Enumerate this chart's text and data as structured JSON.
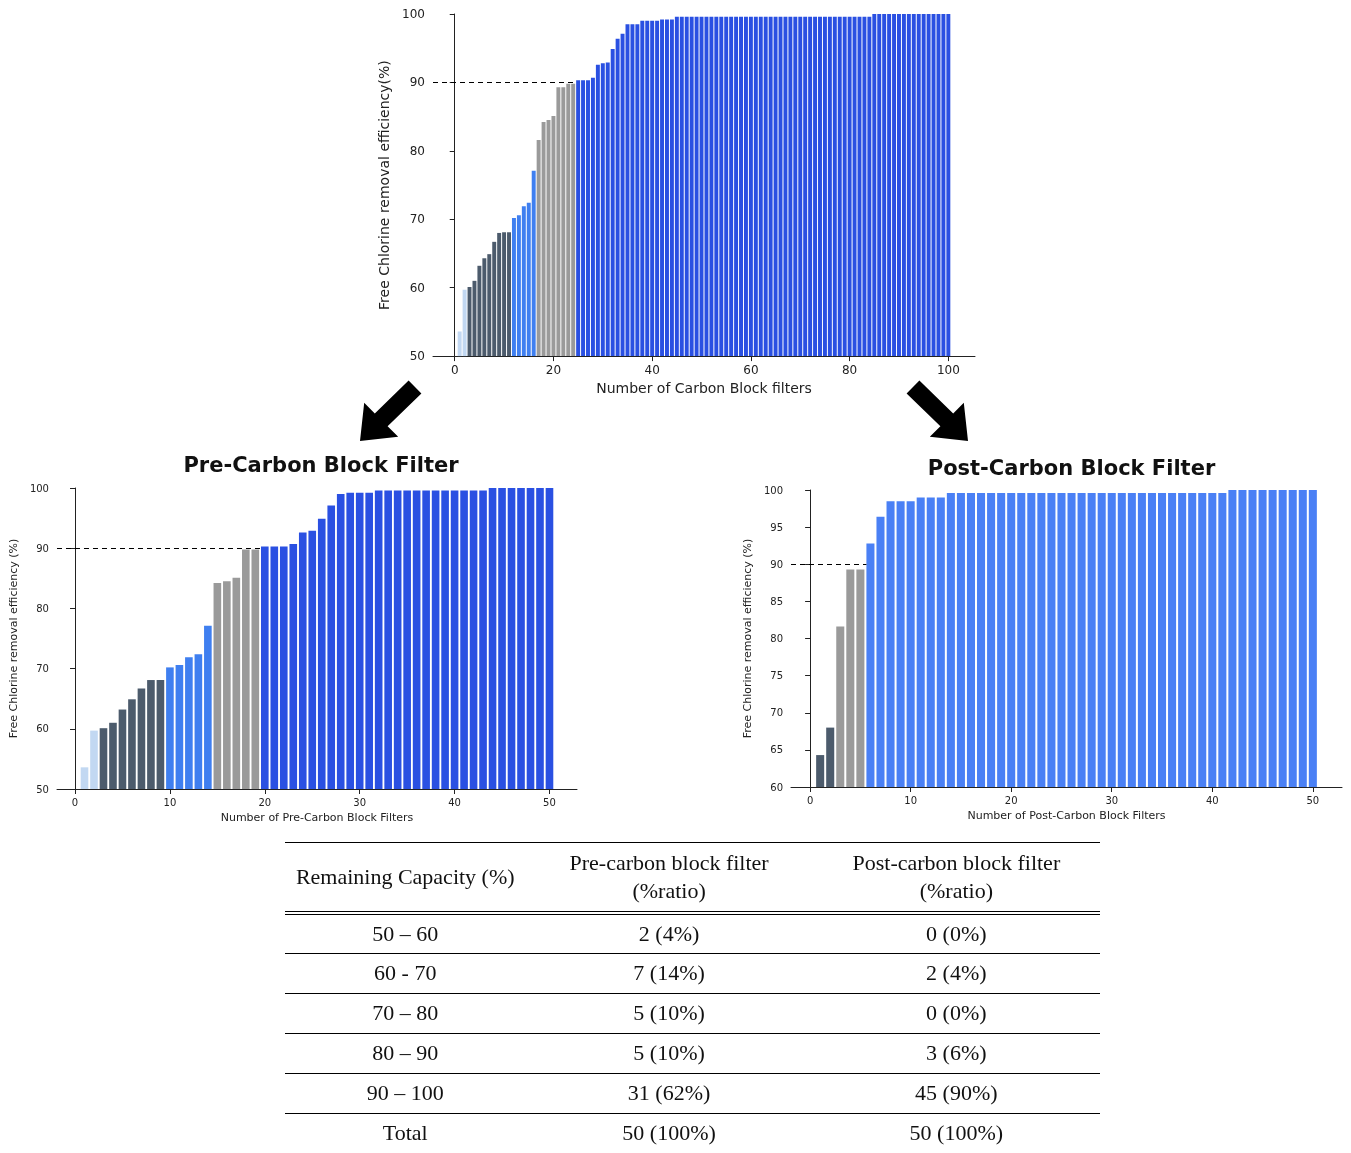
{
  "chart_data": [
    {
      "type": "bar",
      "xlabel": "Number of Carbon Block filters",
      "ylabel": "Free Chlorine removal efficiency(%)",
      "x": [
        1,
        2,
        3,
        4,
        5,
        6,
        7,
        8,
        9,
        10,
        11,
        12,
        13,
        14,
        15,
        16,
        17,
        18,
        19,
        20,
        21,
        22,
        23,
        24,
        25,
        26,
        27,
        28,
        29,
        30,
        31,
        32,
        33,
        34,
        35,
        36,
        37,
        38,
        39,
        40,
        41,
        42,
        43,
        44,
        45,
        46,
        47,
        48,
        49,
        50,
        51,
        52,
        53,
        54,
        55,
        56,
        57,
        58,
        59,
        60,
        61,
        62,
        63,
        64,
        65,
        66,
        67,
        68,
        69,
        70,
        71,
        72,
        73,
        74,
        75,
        76,
        77,
        78,
        79,
        80,
        81,
        82,
        83,
        84,
        85,
        86,
        87,
        88,
        89,
        90,
        91,
        92,
        93,
        94,
        95,
        96,
        97,
        98,
        99,
        100
      ],
      "values": [
        53.6,
        59.7,
        60.1,
        61.0,
        63.2,
        64.3,
        64.9,
        66.7,
        68.0,
        68.1,
        68.1,
        70.2,
        70.6,
        71.9,
        72.4,
        77.1,
        81.6,
        84.2,
        84.5,
        85.1,
        89.3,
        89.3,
        89.8,
        89.8,
        90.3,
        90.3,
        90.3,
        90.7,
        92.6,
        92.8,
        92.9,
        94.9,
        96.4,
        97.1,
        98.5,
        98.5,
        98.5,
        99.0,
        99.0,
        99.0,
        99.0,
        99.2,
        99.2,
        99.2,
        99.6,
        99.6,
        99.6,
        99.6,
        99.6,
        99.6,
        99.6,
        99.6,
        99.6,
        99.6,
        99.6,
        99.6,
        99.6,
        99.6,
        99.6,
        99.6,
        99.6,
        99.6,
        99.6,
        99.6,
        99.6,
        99.6,
        99.6,
        99.6,
        99.6,
        99.6,
        99.6,
        99.6,
        99.6,
        99.6,
        99.6,
        99.6,
        99.6,
        99.6,
        99.6,
        99.6,
        99.6,
        99.6,
        99.6,
        99.6,
        100,
        100,
        100,
        100,
        100,
        100,
        100,
        100,
        100,
        100,
        100,
        100,
        100,
        100,
        100,
        100
      ],
      "colors": [
        "#c2d8f2",
        "#c2d8f2",
        "#4c5b6c",
        "#4c5b6c",
        "#4c5b6c",
        "#4c5b6c",
        "#4c5b6c",
        "#4c5b6c",
        "#4c5b6c",
        "#4c5b6c",
        "#4c5b6c",
        "#3f7ff0",
        "#3f7ff0",
        "#3f7ff0",
        "#3f7ff0",
        "#3f7ff0",
        "#9a9a9a",
        "#9a9a9a",
        "#9a9a9a",
        "#9a9a9a",
        "#9a9a9a",
        "#9a9a9a",
        "#9a9a9a",
        "#9a9a9a",
        "#2a50e2",
        "#2a50e2",
        "#2a50e2",
        "#2a50e2",
        "#2a50e2",
        "#2a50e2",
        "#2a50e2",
        "#2a50e2",
        "#2a50e2",
        "#2a50e2",
        "#2a50e2",
        "#2a50e2",
        "#2a50e2",
        "#2a50e2",
        "#2a50e2",
        "#2a50e2",
        "#2a50e2",
        "#2a50e2",
        "#2a50e2",
        "#2a50e2",
        "#2a50e2",
        "#2a50e2",
        "#2a50e2",
        "#2a50e2",
        "#2a50e2",
        "#2a50e2",
        "#2a50e2",
        "#2a50e2",
        "#2a50e2",
        "#2a50e2",
        "#2a50e2",
        "#2a50e2",
        "#2a50e2",
        "#2a50e2",
        "#2a50e2",
        "#2a50e2",
        "#2a50e2",
        "#2a50e2",
        "#2a50e2",
        "#2a50e2",
        "#2a50e2",
        "#2a50e2",
        "#2a50e2",
        "#2a50e2",
        "#2a50e2",
        "#2a50e2",
        "#2a50e2",
        "#2a50e2",
        "#2a50e2",
        "#2a50e2",
        "#2a50e2",
        "#2a50e2",
        "#2a50e2",
        "#2a50e2",
        "#2a50e2",
        "#2a50e2",
        "#2a50e2",
        "#2a50e2",
        "#2a50e2",
        "#2a50e2",
        "#2a50e2",
        "#2a50e2",
        "#2a50e2",
        "#2a50e2",
        "#2a50e2",
        "#2a50e2",
        "#2a50e2",
        "#2a50e2",
        "#2a50e2",
        "#2a50e2",
        "#2a50e2",
        "#2a50e2",
        "#2a50e2",
        "#2a50e2",
        "#2a50e2",
        "#2a50e2"
      ],
      "xlim": [
        -4.4,
        105.4
      ],
      "xticks": [
        0,
        20,
        40,
        60,
        80,
        100
      ],
      "ylim": [
        50,
        100
      ],
      "yticks": [
        50,
        60,
        70,
        80,
        90,
        100
      ],
      "ref_lines": [
        {
          "axis": "y",
          "value": 90,
          "color": "#000000",
          "line_style": "dashed"
        }
      ]
    },
    {
      "type": "bar",
      "title": "Pre-Carbon Block Filter",
      "xlabel": "Number of Pre-Carbon Block Filters",
      "ylabel": "Free Chlorine removal efficiency (%)",
      "x": [
        1,
        2,
        3,
        4,
        5,
        6,
        7,
        8,
        9,
        10,
        11,
        12,
        13,
        14,
        15,
        16,
        17,
        18,
        19,
        20,
        21,
        22,
        23,
        24,
        25,
        26,
        27,
        28,
        29,
        30,
        31,
        32,
        33,
        34,
        35,
        36,
        37,
        38,
        39,
        40,
        41,
        42,
        43,
        44,
        45,
        46,
        47,
        48,
        49,
        50
      ],
      "values": [
        53.6,
        59.7,
        60.1,
        61.0,
        63.2,
        64.9,
        66.7,
        68.1,
        68.1,
        70.2,
        70.6,
        71.9,
        72.4,
        77.1,
        84.2,
        84.5,
        85.1,
        89.8,
        89.8,
        90.3,
        90.3,
        90.3,
        90.7,
        92.6,
        92.9,
        94.9,
        97.1,
        99.0,
        99.2,
        99.2,
        99.2,
        99.6,
        99.6,
        99.6,
        99.6,
        99.6,
        99.6,
        99.6,
        99.6,
        99.6,
        99.6,
        99.6,
        99.6,
        100,
        100,
        100,
        100,
        100,
        100,
        100
      ],
      "colors": [
        "#c2d8f2",
        "#c2d8f2",
        "#4c5b6c",
        "#4c5b6c",
        "#4c5b6c",
        "#4c5b6c",
        "#4c5b6c",
        "#4c5b6c",
        "#4c5b6c",
        "#3f7ff0",
        "#3f7ff0",
        "#3f7ff0",
        "#3f7ff0",
        "#3f7ff0",
        "#9a9a9a",
        "#9a9a9a",
        "#9a9a9a",
        "#9a9a9a",
        "#9a9a9a",
        "#2a50e2",
        "#2a50e2",
        "#2a50e2",
        "#2a50e2",
        "#2a50e2",
        "#2a50e2",
        "#2a50e2",
        "#2a50e2",
        "#2a50e2",
        "#2a50e2",
        "#2a50e2",
        "#2a50e2",
        "#2a50e2",
        "#2a50e2",
        "#2a50e2",
        "#2a50e2",
        "#2a50e2",
        "#2a50e2",
        "#2a50e2",
        "#2a50e2",
        "#2a50e2",
        "#2a50e2",
        "#2a50e2",
        "#2a50e2",
        "#2a50e2",
        "#2a50e2",
        "#2a50e2",
        "#2a50e2",
        "#2a50e2",
        "#2a50e2",
        "#2a50e2"
      ],
      "xlim": [
        -1.9,
        52.9
      ],
      "xticks": [
        0,
        10,
        20,
        30,
        40,
        50
      ],
      "ylim": [
        50,
        100
      ],
      "yticks": [
        50,
        60,
        70,
        80,
        90,
        100
      ],
      "ref_lines": [
        {
          "axis": "y",
          "value": 90,
          "color": "#000000",
          "line_style": "dashed"
        }
      ]
    },
    {
      "type": "bar",
      "title": "Post-Carbon Block Filter",
      "xlabel": "Number of Post-Carbon Block Filters",
      "ylabel": "Free Chlorine removal efficiency (%)",
      "x": [
        1,
        2,
        3,
        4,
        5,
        6,
        7,
        8,
        9,
        10,
        11,
        12,
        13,
        14,
        15,
        16,
        17,
        18,
        19,
        20,
        21,
        22,
        23,
        24,
        25,
        26,
        27,
        28,
        29,
        30,
        31,
        32,
        33,
        34,
        35,
        36,
        37,
        38,
        39,
        40,
        41,
        42,
        43,
        44,
        45,
        46,
        47,
        48,
        49,
        50
      ],
      "values": [
        64.3,
        68.0,
        81.6,
        89.3,
        89.3,
        92.8,
        96.4,
        98.5,
        98.5,
        98.5,
        99.0,
        99.0,
        99.0,
        99.6,
        99.6,
        99.6,
        99.6,
        99.6,
        99.6,
        99.6,
        99.6,
        99.6,
        99.6,
        99.6,
        99.6,
        99.6,
        99.6,
        99.6,
        99.6,
        99.6,
        99.6,
        99.6,
        99.6,
        99.6,
        99.6,
        99.6,
        99.6,
        99.6,
        99.6,
        99.6,
        99.6,
        100,
        100,
        100,
        100,
        100,
        100,
        100,
        100,
        100
      ],
      "colors": [
        "#4c5b6c",
        "#4c5b6c",
        "#9a9a9a",
        "#9a9a9a",
        "#9a9a9a",
        "#4a80f5",
        "#4a80f5",
        "#4a80f5",
        "#4a80f5",
        "#4a80f5",
        "#4a80f5",
        "#4a80f5",
        "#4a80f5",
        "#4a80f5",
        "#4a80f5",
        "#4a80f5",
        "#4a80f5",
        "#4a80f5",
        "#4a80f5",
        "#4a80f5",
        "#4a80f5",
        "#4a80f5",
        "#4a80f5",
        "#4a80f5",
        "#4a80f5",
        "#4a80f5",
        "#4a80f5",
        "#4a80f5",
        "#4a80f5",
        "#4a80f5",
        "#4a80f5",
        "#4a80f5",
        "#4a80f5",
        "#4a80f5",
        "#4a80f5",
        "#4a80f5",
        "#4a80f5",
        "#4a80f5",
        "#4a80f5",
        "#4a80f5",
        "#4a80f5",
        "#4a80f5",
        "#4a80f5",
        "#4a80f5",
        "#4a80f5",
        "#4a80f5",
        "#4a80f5",
        "#4a80f5",
        "#4a80f5",
        "#4a80f5"
      ],
      "xlim": [
        -1.9,
        52.9
      ],
      "xticks": [
        0,
        10,
        20,
        30,
        40,
        50
      ],
      "ylim": [
        60,
        100
      ],
      "yticks": [
        60,
        65,
        70,
        75,
        80,
        85,
        90,
        95,
        100
      ],
      "ref_lines": [
        {
          "axis": "y",
          "value": 90,
          "color": "#000000",
          "line_style": "dashed"
        }
      ]
    },
    {
      "type": "other",
      "categories": [
        "Remaining Capacity (%)",
        "Pre-carbon block filter (%ratio)",
        "Post-carbon block filter (%ratio)"
      ],
      "annotations": [
        "50 – 60",
        "2 (4%)",
        "0 (0%)",
        "60 - 70",
        "7 (14%)",
        "2 (4%)",
        "70 – 80",
        "5 (10%)",
        "0 (0%)",
        "80 – 90",
        "5 (10%)",
        "3 (6%)",
        "90 – 100",
        "31 (62%)",
        "45 (90%)",
        "Total",
        "50 (100%)",
        "50 (100%)"
      ]
    }
  ]
}
